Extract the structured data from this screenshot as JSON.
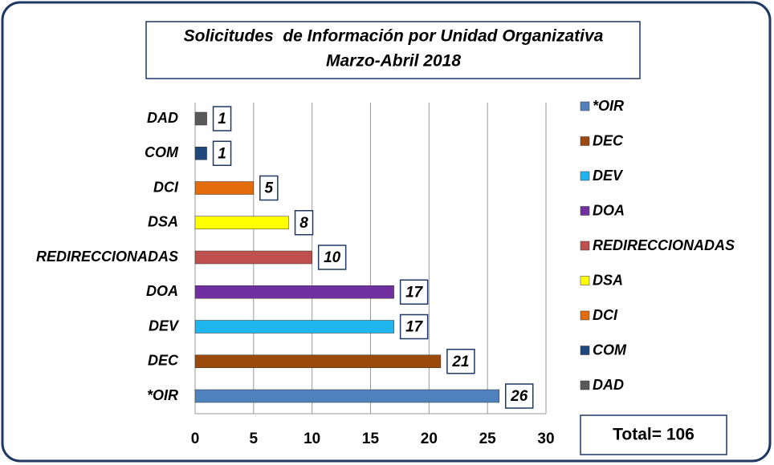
{
  "chart_data": {
    "type": "bar",
    "orientation": "horizontal",
    "title": "Solicitudes  de Información por Unidad Organizativa",
    "subtitle": "Marzo-Abril 2018",
    "categories": [
      "*OIR",
      "DEC",
      "DEV",
      "DOA",
      "REDIRECCIONADAS",
      "DSA",
      "DCI",
      "COM",
      "DAD"
    ],
    "values": [
      26,
      21,
      17,
      17,
      10,
      8,
      5,
      1,
      1
    ],
    "colors": [
      "#4f81bd",
      "#9c4a0c",
      "#1fb5ee",
      "#7030a0",
      "#c0504d",
      "#ffff00",
      "#e46c0a",
      "#1f497d",
      "#595959"
    ],
    "xlim": [
      0,
      30
    ],
    "xticks": [
      0,
      5,
      10,
      15,
      20,
      25,
      30
    ],
    "grid": true,
    "legend": "right",
    "annotation": "Total= 106"
  }
}
